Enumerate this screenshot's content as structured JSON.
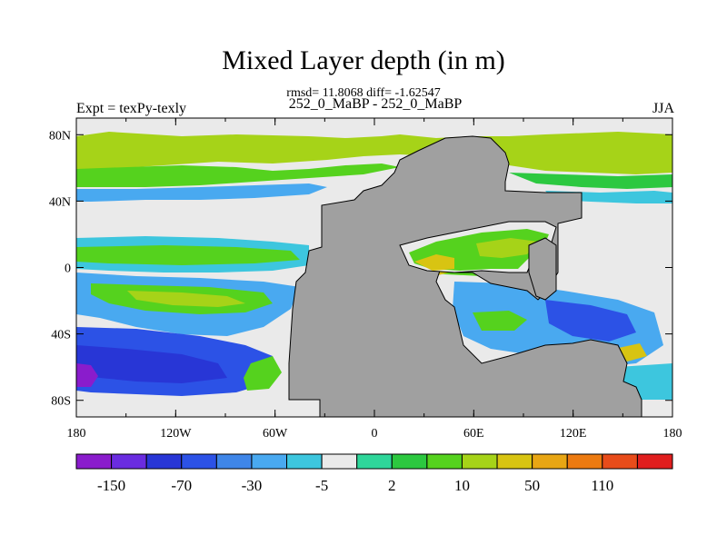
{
  "chart_data": {
    "type": "heatmap",
    "title": "Mixed Layer depth (in m)",
    "subtitle": "rmsd= 11.8068 diff= -1.62547",
    "left_string": "Expt = texPy-texly",
    "center_string": "252_0_MaBP - 252_0_MaBP",
    "right_string": "JJA",
    "x_ticks": [
      "180",
      "120W",
      "60W",
      "0",
      "60E",
      "120E",
      "180"
    ],
    "y_ticks": [
      "80N",
      "40N",
      "0",
      "40S",
      "80S"
    ],
    "xlim": [
      -180,
      180
    ],
    "ylim": [
      -90,
      90
    ],
    "colorbar": {
      "levels": [
        "-150",
        "-70",
        "-30",
        "-5",
        "2",
        "10",
        "50",
        "110"
      ],
      "colors": [
        "#8a1ccc",
        "#6a2ce0",
        "#2836d6",
        "#2c52e6",
        "#3f86e8",
        "#49a9f0",
        "#3dc6de",
        "#eaeaea",
        "#2ed69a",
        "#2cc840",
        "#55d21e",
        "#a6d318",
        "#d8c412",
        "#e8a614",
        "#ec7a10",
        "#e84c1a",
        "#e01e1e"
      ]
    },
    "land_color": "#a0a0a0",
    "missing_color": "#eaeaea"
  }
}
